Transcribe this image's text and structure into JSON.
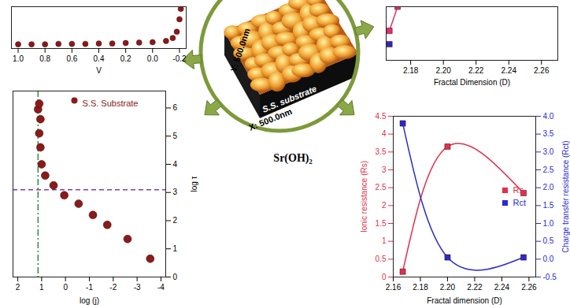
{
  "chart_data": [
    {
      "type": "scatter",
      "xlabel": "V",
      "xlim": [
        1.05,
        -0.25
      ],
      "xticks": [
        {
          "value": 1,
          "label": "1.0"
        },
        0.8,
        0.6,
        0.4,
        0.2,
        {
          "value": 0,
          "label": "0.0"
        },
        -0.2
      ],
      "ylim": [
        0,
        1
      ],
      "tick_labels": "x",
      "series": [
        {
          "color": "#8b1a1a",
          "marker": "circle",
          "x": [
            1.0,
            0.9,
            0.8,
            0.7,
            0.6,
            0.5,
            0.4,
            0.3,
            0.2,
            0.1,
            0.0,
            -0.1,
            -0.15,
            -0.18,
            -0.2,
            -0.21
          ],
          "values": [
            0.1,
            0.1,
            0.1,
            0.11,
            0.11,
            0.11,
            0.12,
            0.12,
            0.13,
            0.14,
            0.15,
            0.18,
            0.25,
            0.4,
            0.7,
            0.95
          ]
        }
      ]
    },
    {
      "type": "line",
      "xlabel": "Fractal Dimension (D)",
      "xlim": [
        2.165,
        2.27
      ],
      "xticks": [
        2.18,
        {
          "value": 2.2,
          "label": "2.20"
        },
        2.22,
        2.24,
        2.26
      ],
      "ylim": [
        0,
        1
      ],
      "tick_labels": "x",
      "series": [
        {
          "color": "#e0306a",
          "marker": "square",
          "x": [
            2.167,
            2.172
          ],
          "values": [
            0.55,
            1.0
          ]
        },
        {
          "color": "#2a2ab8",
          "marker": "square",
          "x": [
            2.167
          ],
          "values": [
            0.3
          ]
        }
      ]
    },
    {
      "type": "scatter",
      "xlabel": "log (j)",
      "ylabel": "log τ",
      "xlim": [
        2.2,
        -4.2
      ],
      "xticks": [
        2,
        1,
        0,
        -1,
        -2,
        -3,
        -4
      ],
      "ylim": [
        0,
        6.6
      ],
      "yticks": [
        0,
        1,
        2,
        3,
        4,
        5,
        6
      ],
      "legend": "top-right",
      "reference_lines": [
        {
          "axis": "x",
          "value": 1.15,
          "color": "#2e8b3a"
        },
        {
          "axis": "y",
          "value": 3.1,
          "color": "#7b3fb5"
        }
      ],
      "series": [
        {
          "name": "S.S. Substrate",
          "color": "#8b1a1a",
          "marker": "circle",
          "x": [
            -3.55,
            -2.6,
            -1.75,
            -1.15,
            -0.55,
            0.05,
            0.5,
            0.85,
            1.0,
            1.05,
            1.1,
            1.05,
            1.15,
            1.1
          ],
          "values": [
            0.65,
            1.35,
            1.85,
            2.2,
            2.6,
            2.9,
            3.25,
            3.6,
            4.0,
            4.6,
            5.1,
            5.6,
            5.95,
            6.15
          ]
        }
      ]
    },
    {
      "type": "line",
      "xlabel": "Fractal dimension (D)",
      "ylabel": "Ionic resistance (Rs)",
      "y2label": "Charge transfer resistance (Rct)",
      "xlim": [
        2.16,
        2.265
      ],
      "xticks": [
        2.16,
        2.18,
        {
          "value": 2.2,
          "label": "2.20"
        },
        2.22,
        2.24,
        2.26
      ],
      "ylim": [
        0,
        4.5
      ],
      "yticks": [
        0,
        0.5,
        1,
        1.5,
        2,
        2.5,
        3,
        3.5,
        4,
        4.5
      ],
      "y2lim": [
        -0.5,
        4.0
      ],
      "y2ticks": [
        -0.5,
        {
          "value": 0,
          "label": "0.0"
        },
        0.5,
        {
          "value": 1,
          "label": "1.0"
        },
        1.5,
        {
          "value": 2,
          "label": "2.0"
        },
        2.5,
        {
          "value": 3,
          "label": "3.0"
        },
        3.5,
        {
          "value": 4,
          "label": "4.0"
        }
      ],
      "legend": "right",
      "series": [
        {
          "name": "Rs",
          "color": "#e0304a",
          "marker": "square",
          "line_style": "smooth",
          "x": [
            2.167,
            2.2,
            2.256
          ],
          "values": [
            0.15,
            3.65,
            2.35
          ]
        },
        {
          "name": "Rct",
          "color": "#2a2ad0",
          "marker": "square",
          "line_style": "smooth",
          "axis": "y2",
          "x": [
            2.167,
            2.2,
            2.256
          ],
          "values": [
            3.8,
            0.05,
            0.05
          ]
        }
      ]
    }
  ],
  "center": {
    "image_labels": [
      "S.S. substrate",
      "X: 500.0nm",
      "Y: 500.0nm"
    ],
    "caption": "Sr(OH)₂"
  }
}
